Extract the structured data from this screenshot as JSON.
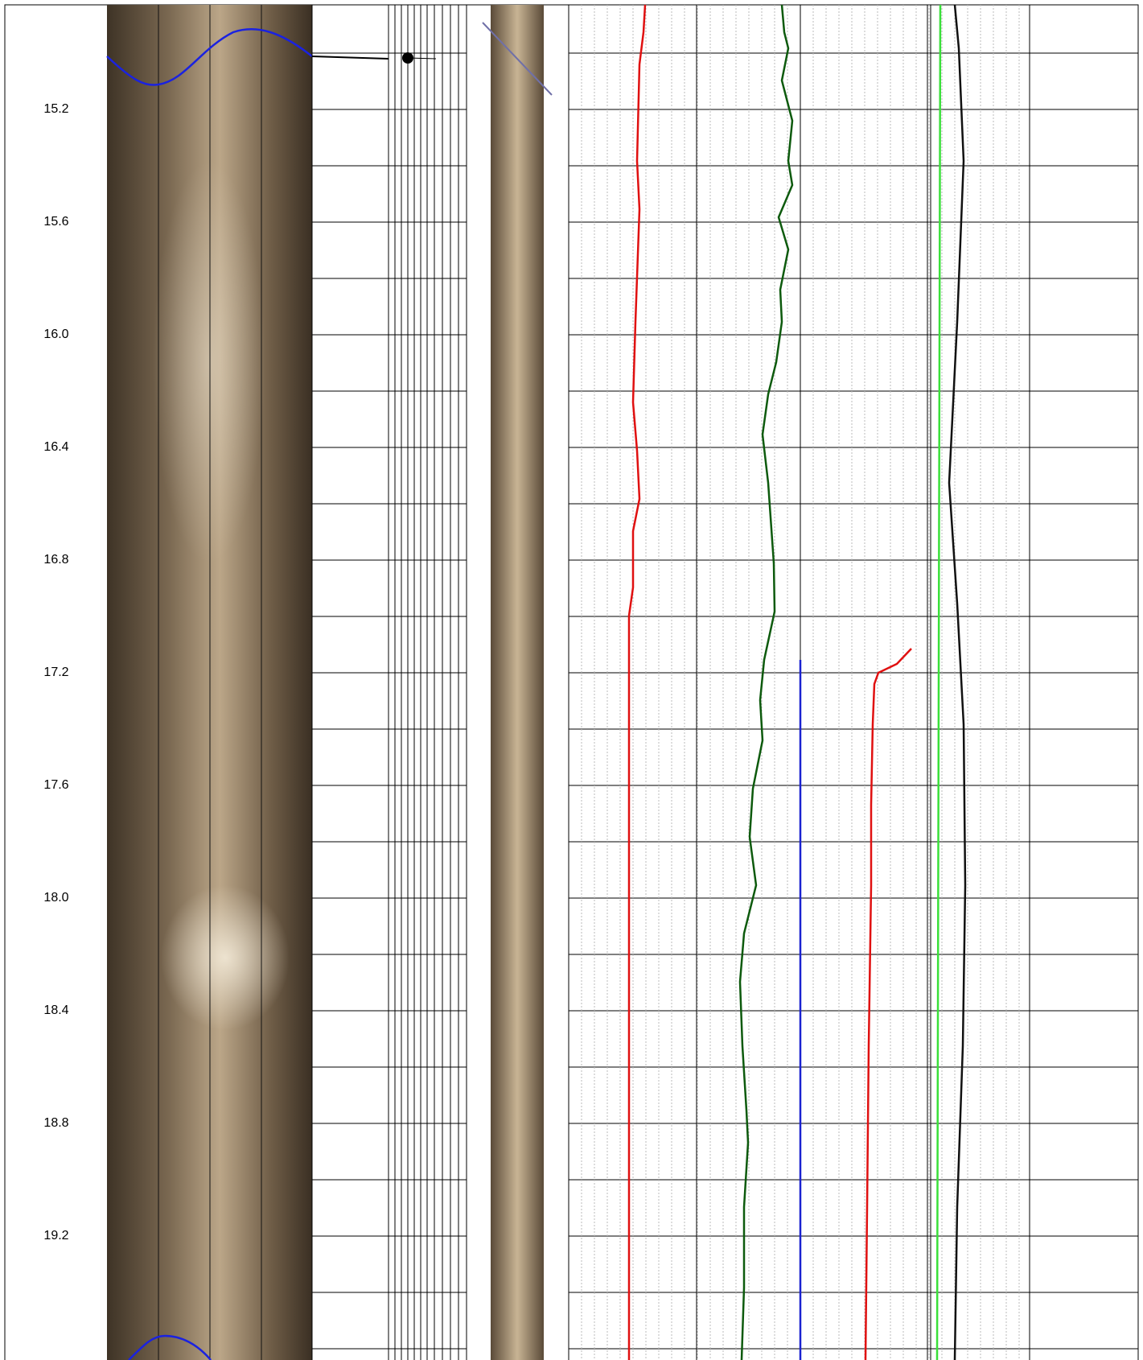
{
  "depth_track": {
    "labels": [
      "15.2",
      "15.6",
      "16.0",
      "16.4",
      "16.8",
      "17.2",
      "17.6",
      "18.0",
      "18.4",
      "18.8",
      "19.2"
    ]
  }
}
